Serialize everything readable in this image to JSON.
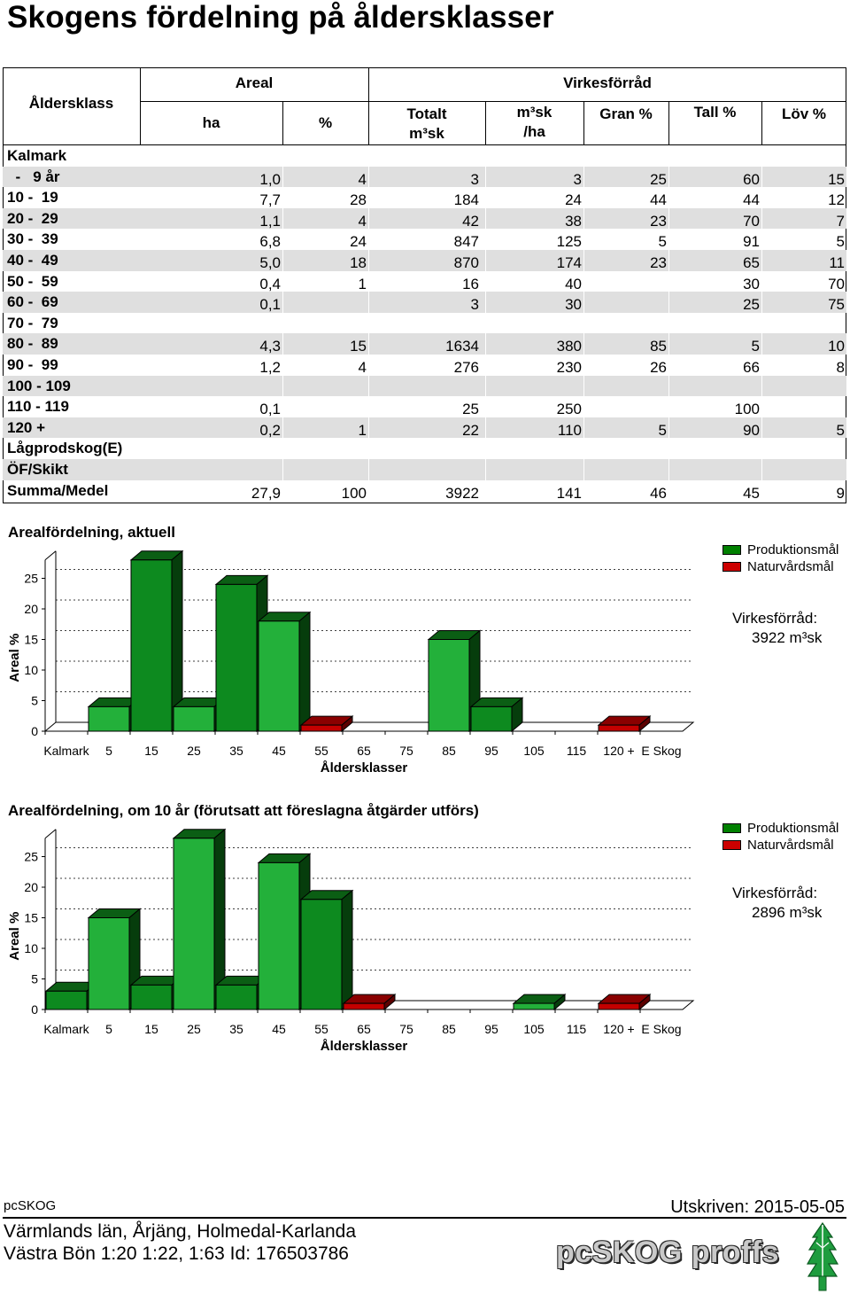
{
  "title": "Skogens fördelning på åldersklasser",
  "table": {
    "headers": {
      "aldersklass": "Åldersklass",
      "areal": "Areal",
      "virkesforrad": "Virkesförråd",
      "ha": "ha",
      "pct": "%",
      "totalt_1": "Totalt",
      "totalt_2": "m³sk",
      "m3skha_1": "m³sk",
      "m3skha_2": "/ha",
      "gran": "Gran %",
      "tall": "Tall %",
      "lov": "Löv %"
    },
    "group_label": "Kalmark",
    "rows": [
      {
        "label": "  -   9 år",
        "ha": "1,0",
        "pct": "4",
        "totalt": "3",
        "m3skha": "3",
        "gran": "25",
        "tall": "60",
        "lov": "15"
      },
      {
        "label": "10 -  19",
        "ha": "7,7",
        "pct": "28",
        "totalt": "184",
        "m3skha": "24",
        "gran": "44",
        "tall": "44",
        "lov": "12"
      },
      {
        "label": "20 -  29",
        "ha": "1,1",
        "pct": "4",
        "totalt": "42",
        "m3skha": "38",
        "gran": "23",
        "tall": "70",
        "lov": "7"
      },
      {
        "label": "30 -  39",
        "ha": "6,8",
        "pct": "24",
        "totalt": "847",
        "m3skha": "125",
        "gran": "5",
        "tall": "91",
        "lov": "5"
      },
      {
        "label": "40 -  49",
        "ha": "5,0",
        "pct": "18",
        "totalt": "870",
        "m3skha": "174",
        "gran": "23",
        "tall": "65",
        "lov": "11"
      },
      {
        "label": "50 -  59",
        "ha": "0,4",
        "pct": "1",
        "totalt": "16",
        "m3skha": "40",
        "gran": "",
        "tall": "30",
        "lov": "70"
      },
      {
        "label": "60 -  69",
        "ha": "0,1",
        "pct": "",
        "totalt": "3",
        "m3skha": "30",
        "gran": "",
        "tall": "25",
        "lov": "75"
      },
      {
        "label": "70 -  79",
        "ha": "",
        "pct": "",
        "totalt": "",
        "m3skha": "",
        "gran": "",
        "tall": "",
        "lov": ""
      },
      {
        "label": "80 -  89",
        "ha": "4,3",
        "pct": "15",
        "totalt": "1634",
        "m3skha": "380",
        "gran": "85",
        "tall": "5",
        "lov": "10"
      },
      {
        "label": "90 -  99",
        "ha": "1,2",
        "pct": "4",
        "totalt": "276",
        "m3skha": "230",
        "gran": "26",
        "tall": "66",
        "lov": "8"
      },
      {
        "label": "100 - 109",
        "ha": "",
        "pct": "",
        "totalt": "",
        "m3skha": "",
        "gran": "",
        "tall": "",
        "lov": ""
      },
      {
        "label": "110 - 119",
        "ha": "0,1",
        "pct": "",
        "totalt": "25",
        "m3skha": "250",
        "gran": "",
        "tall": "100",
        "lov": ""
      },
      {
        "label": "120 +",
        "ha": "0,2",
        "pct": "1",
        "totalt": "22",
        "m3skha": "110",
        "gran": "5",
        "tall": "90",
        "lov": "5"
      },
      {
        "label": "Lågprodskog(E)",
        "ha": "",
        "pct": "",
        "totalt": "",
        "m3skha": "",
        "gran": "",
        "tall": "",
        "lov": ""
      },
      {
        "label": "ÖF/Skikt",
        "ha": "",
        "pct": "",
        "totalt": "",
        "m3skha": "",
        "gran": "",
        "tall": "",
        "lov": ""
      }
    ],
    "summary": {
      "label": "Summa/Medel",
      "ha": "27,9",
      "pct": "100",
      "totalt": "3922",
      "m3skha": "141",
      "gran": "46",
      "tall": "45",
      "lov": "9"
    }
  },
  "chart_data": [
    {
      "type": "bar",
      "title": "Arealfördelning, aktuell",
      "ylabel": "Areal %",
      "xlabel": "Åldersklasser",
      "categories": [
        "Kalmark",
        "5",
        "15",
        "25",
        "35",
        "45",
        "55",
        "65",
        "75",
        "85",
        "95",
        "105",
        "115",
        "120 +",
        "E Skog"
      ],
      "yticks": [
        "0",
        "5",
        "10",
        "15",
        "20",
        "25"
      ],
      "ylim": [
        0,
        28
      ],
      "grid": true,
      "legend_position": "right",
      "series": [
        {
          "name": "Produktionsmål",
          "color": "#008000",
          "values": [
            0,
            4,
            28,
            4,
            24,
            18,
            0,
            0,
            0,
            15,
            4,
            0,
            0,
            0,
            0
          ]
        },
        {
          "name": "Naturvårdsmål",
          "color": "#cc0000",
          "values": [
            0,
            0,
            0,
            0,
            0,
            0,
            1,
            0,
            0,
            0,
            0,
            0,
            0,
            1,
            0
          ]
        }
      ],
      "stock_label": "Virkesförråd:",
      "stock_value": "3922 m³sk"
    },
    {
      "type": "bar",
      "title": "Arealfördelning, om 10 år (förutsatt att föreslagna åtgärder utförs)",
      "ylabel": "Areal %",
      "xlabel": "Åldersklasser",
      "categories": [
        "Kalmark",
        "5",
        "15",
        "25",
        "35",
        "45",
        "55",
        "65",
        "75",
        "85",
        "95",
        "105",
        "115",
        "120 +",
        "E Skog"
      ],
      "yticks": [
        "0",
        "5",
        "10",
        "15",
        "20",
        "25"
      ],
      "ylim": [
        0,
        28
      ],
      "grid": true,
      "legend_position": "right",
      "series": [
        {
          "name": "Produktionsmål",
          "color": "#008000",
          "values": [
            3,
            15,
            4,
            28,
            4,
            24,
            18,
            0,
            0,
            0,
            0,
            1,
            0,
            0,
            0
          ]
        },
        {
          "name": "Naturvårdsmål",
          "color": "#cc0000",
          "values": [
            0,
            0,
            0,
            0,
            0,
            0,
            0,
            1,
            0,
            0,
            0,
            0,
            0,
            1,
            0
          ]
        }
      ],
      "stock_label": "Virkesförråd:",
      "stock_value": "2896 m³sk"
    }
  ],
  "footer": {
    "app": "pcSKOG",
    "date": "Utskriven: 2015-05-05",
    "location": "Värmlands län, Årjäng, Holmedal-Karlanda",
    "property": "Västra Bön 1:20 1:22, 1:63 Id: 176503786",
    "brand": "pcSKOG proffs"
  }
}
